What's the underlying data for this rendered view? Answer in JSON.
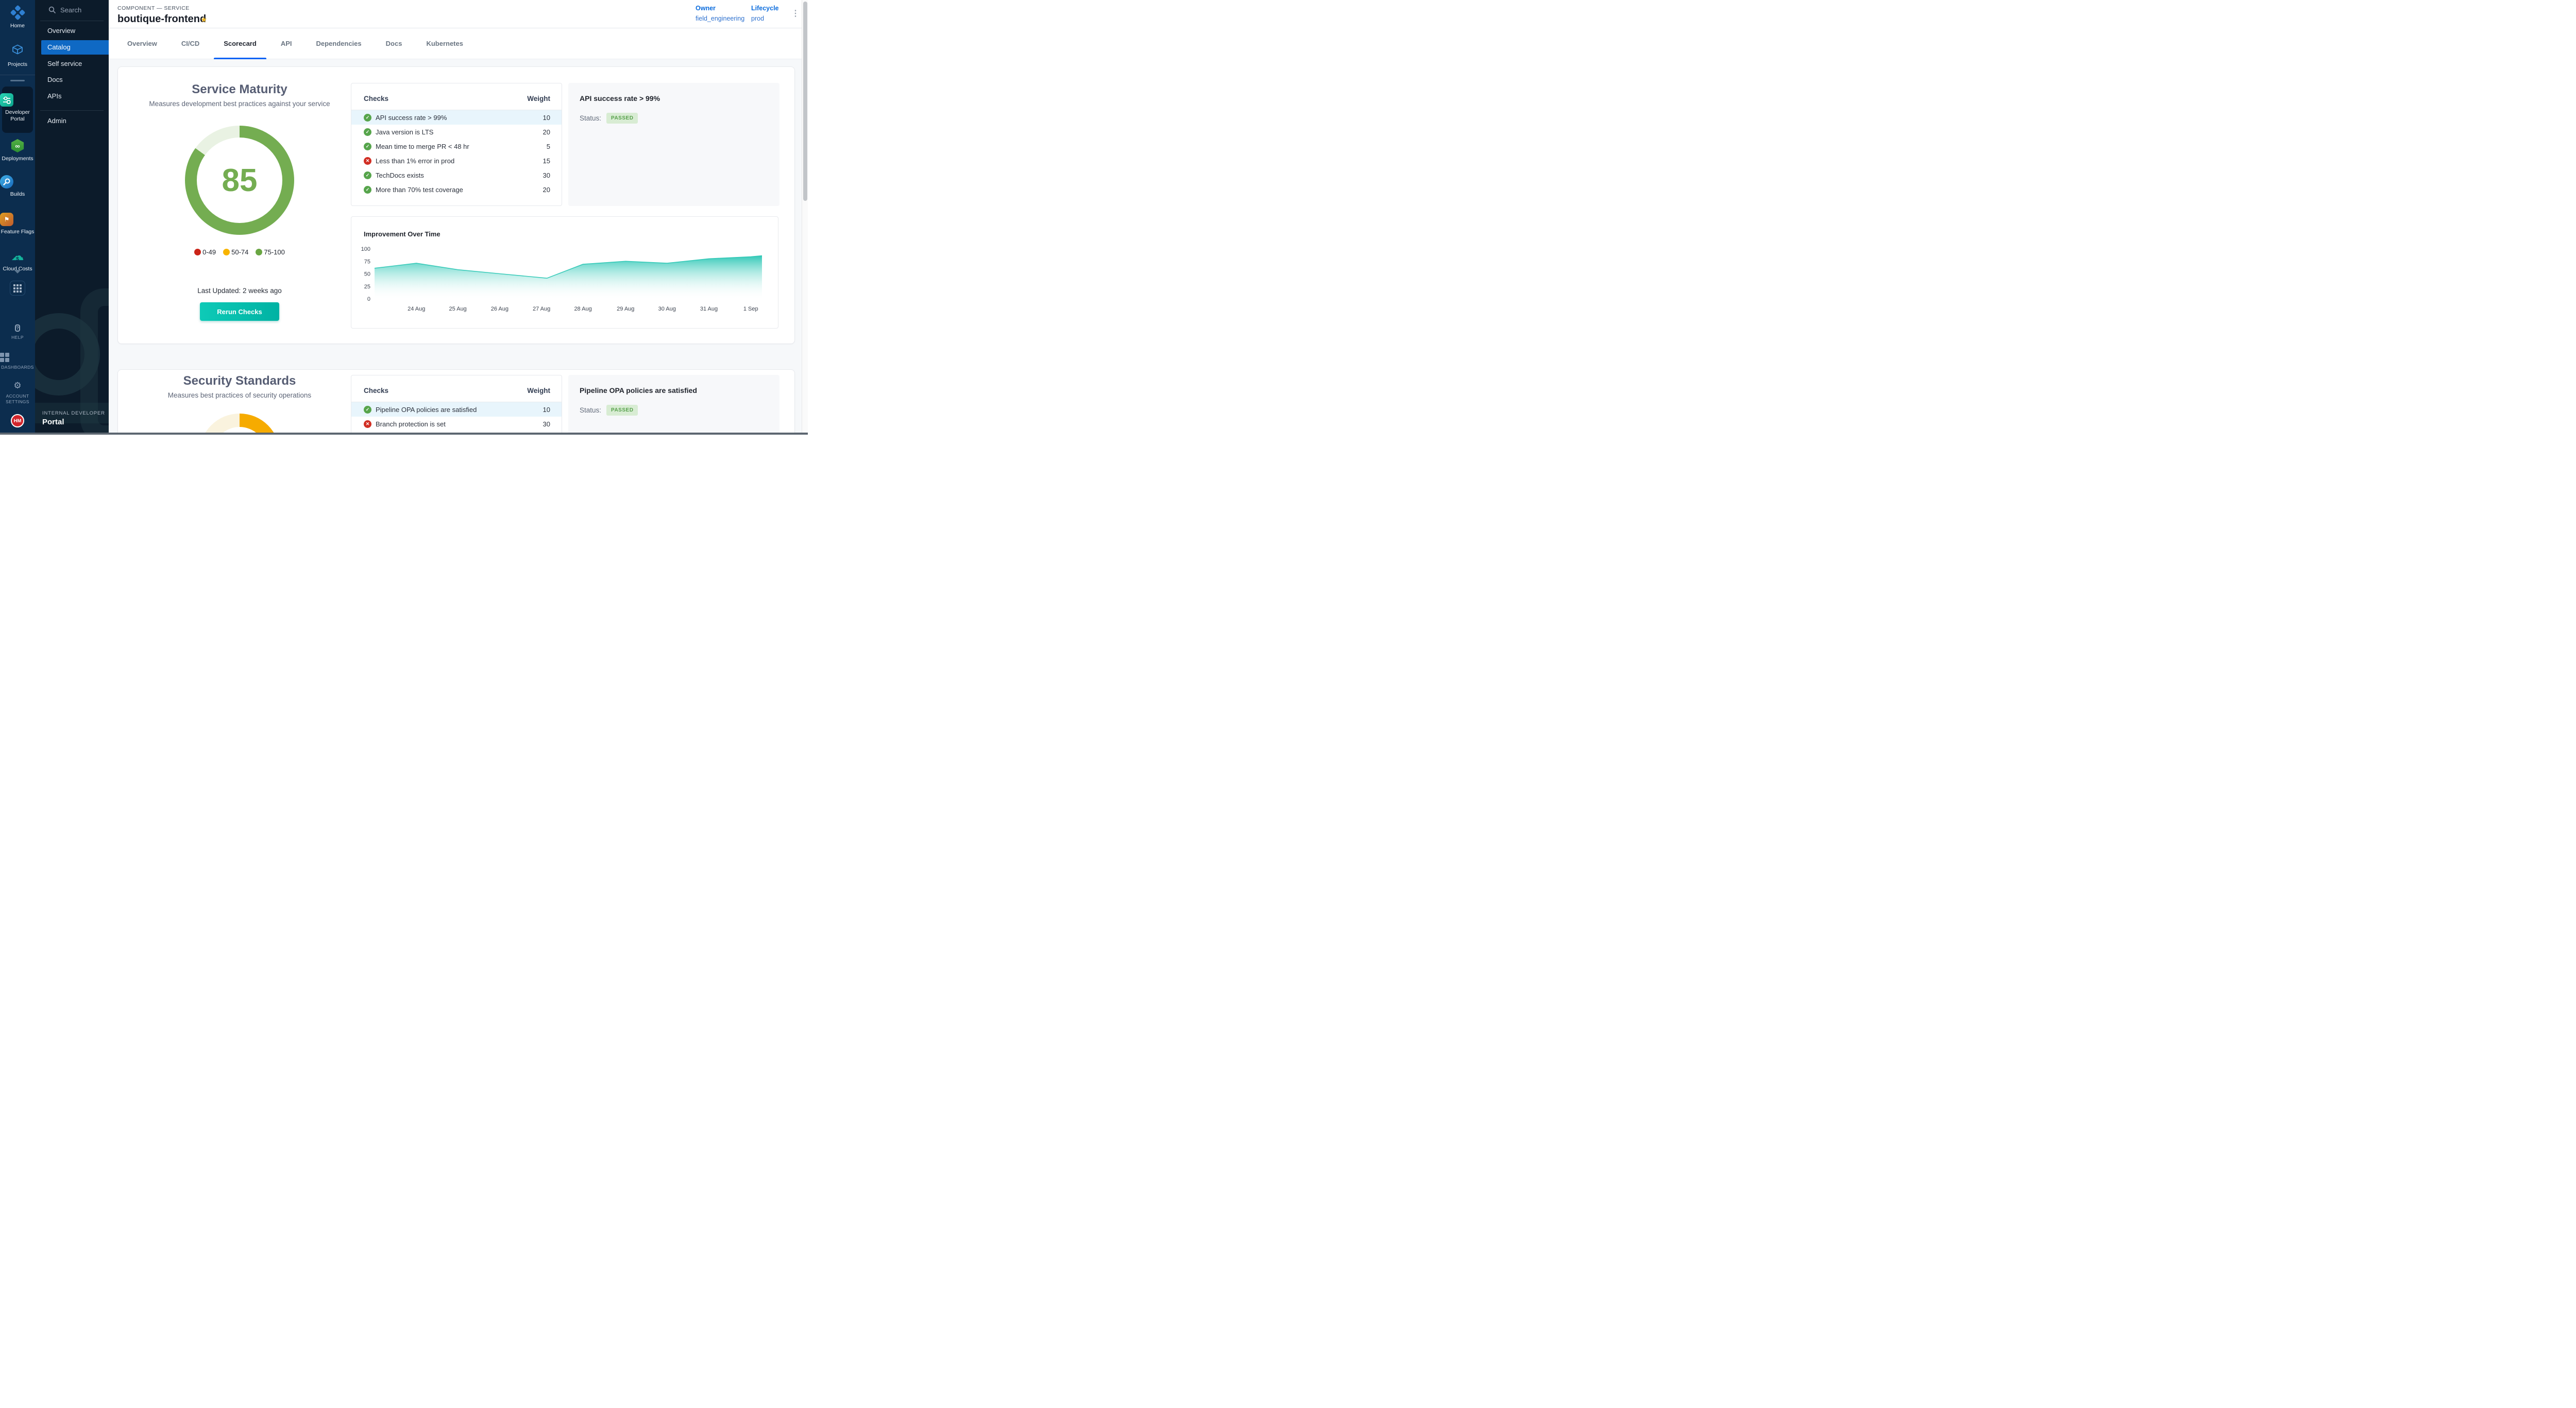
{
  "theme_vars": {
    "accent": "#0d63f4",
    "teal1": "#0ecab7",
    "teal2": "#00b2a3",
    "green": "#57a54c",
    "red": "#d12f24",
    "g1": "#74ad51",
    "g1t": "#e9f2e3",
    "g2": "#f6ab00",
    "g2t": "#faf3de",
    "rowsel": "#e8f5fc",
    "passbg": "#d8ecd3",
    "passfg": "#56a04b"
  },
  "header": {
    "breadcrumb": "COMPONENT — SERVICE",
    "title": "boutique-frontend",
    "owner_label": "Owner",
    "owner_value": "field_engineering",
    "lifecycle_label": "Lifecycle",
    "lifecycle_value": "prod"
  },
  "tabs": [
    "Overview",
    "CI/CD",
    "Scorecard",
    "API",
    "Dependencies",
    "Docs",
    "Kubernetes"
  ],
  "main_sidebar": {
    "items": [
      {
        "label": "Home"
      },
      {
        "label": "Projects"
      },
      {
        "label": "Developer Portal",
        "active": true
      },
      {
        "label": "Deployments"
      },
      {
        "label": "Builds"
      },
      {
        "label": "Feature Flags"
      },
      {
        "label": "Cloud Costs"
      }
    ],
    "bottom_items": [
      {
        "label": "HELP"
      },
      {
        "label": "DASHBOARDS"
      },
      {
        "label": "ACCOUNT SETTINGS"
      }
    ],
    "avatar_initials": "HM"
  },
  "nav_sidebar": {
    "search_label": "Search",
    "items": [
      "Overview",
      "Catalog",
      "Self service",
      "Docs",
      "APIs",
      "Admin"
    ],
    "active_item": "Catalog",
    "footer_eyebrow": "INTERNAL DEVELOPER",
    "footer_title": "Portal"
  },
  "scorecards": [
    {
      "title": "Service Maturity",
      "subtitle": "Measures development best practices against your service",
      "score": 85,
      "gauge": {
        "fill_deg": 306,
        "color": "#74ad51",
        "track": "#e9f2e3"
      },
      "legend": [
        {
          "label": "0-49",
          "color": "#cb2418"
        },
        {
          "label": "50-74",
          "color": "#f8b400"
        },
        {
          "label": "75-100",
          "color": "#6aa643"
        }
      ],
      "last_updated": "Last Updated: 2 weeks ago",
      "button_label": "Rerun Checks",
      "checks_header": {
        "name": "Checks",
        "weight": "Weight"
      },
      "checks": [
        {
          "name": "API success rate > 99%",
          "weight": "10",
          "passed": true,
          "selected": true
        },
        {
          "name": "Java version is LTS",
          "weight": "20",
          "passed": true
        },
        {
          "name": "Mean time to merge PR < 48 hr",
          "weight": "5",
          "passed": true
        },
        {
          "name": "Less than 1% error in prod",
          "weight": "15",
          "passed": false
        },
        {
          "name": "TechDocs exists",
          "weight": "30",
          "passed": true
        },
        {
          "name": "More than 70% test coverage",
          "weight": "20",
          "passed": true
        }
      ],
      "detail": {
        "title": "API success rate > 99%",
        "status_label": "Status:",
        "status": "PASSED"
      }
    },
    {
      "title": "Security Standards",
      "subtitle": "Measures best practices of security operations",
      "gauge": {
        "fill_deg": 200,
        "color": "#f6ab00",
        "track": "#faf3de"
      },
      "checks_header": {
        "name": "Checks",
        "weight": "Weight"
      },
      "checks": [
        {
          "name": "Pipeline OPA policies are satisfied",
          "weight": "10",
          "passed": true,
          "selected": true
        },
        {
          "name": "Branch protection is set",
          "weight": "30",
          "passed": false
        }
      ],
      "detail": {
        "title": "Pipeline OPA policies are satisfied",
        "status_label": "Status:",
        "status": "PASSED"
      }
    }
  ],
  "chart_data": {
    "type": "area",
    "title": "Improvement Over Time",
    "xlabel": "",
    "ylabel": "",
    "ylim": [
      0,
      100
    ],
    "y_ticks": [
      0,
      25,
      50,
      75,
      100
    ],
    "grid": false,
    "legend_position": "none",
    "fill_color": "#29c6b4",
    "x_ticks": [
      {
        "label": "24 Aug",
        "f": 0.108
      },
      {
        "label": "25 Aug",
        "f": 0.215
      },
      {
        "label": "26 Aug",
        "f": 0.323
      },
      {
        "label": "27 Aug",
        "f": 0.431
      },
      {
        "label": "28 Aug",
        "f": 0.538
      },
      {
        "label": "29 Aug",
        "f": 0.648
      },
      {
        "label": "30 Aug",
        "f": 0.755
      },
      {
        "label": "31 Aug",
        "f": 0.863
      },
      {
        "label": "1 Sep",
        "f": 0.971
      }
    ],
    "series": [
      {
        "name": "Score",
        "points": [
          {
            "f": 0.0,
            "v": 61
          },
          {
            "f": 0.108,
            "v": 71
          },
          {
            "f": 0.215,
            "v": 58
          },
          {
            "f": 0.323,
            "v": 50
          },
          {
            "f": 0.445,
            "v": 41
          },
          {
            "f": 0.538,
            "v": 69
          },
          {
            "f": 0.648,
            "v": 75
          },
          {
            "f": 0.755,
            "v": 71
          },
          {
            "f": 0.863,
            "v": 80
          },
          {
            "f": 0.971,
            "v": 84
          },
          {
            "f": 1.0,
            "v": 86
          }
        ]
      }
    ]
  }
}
